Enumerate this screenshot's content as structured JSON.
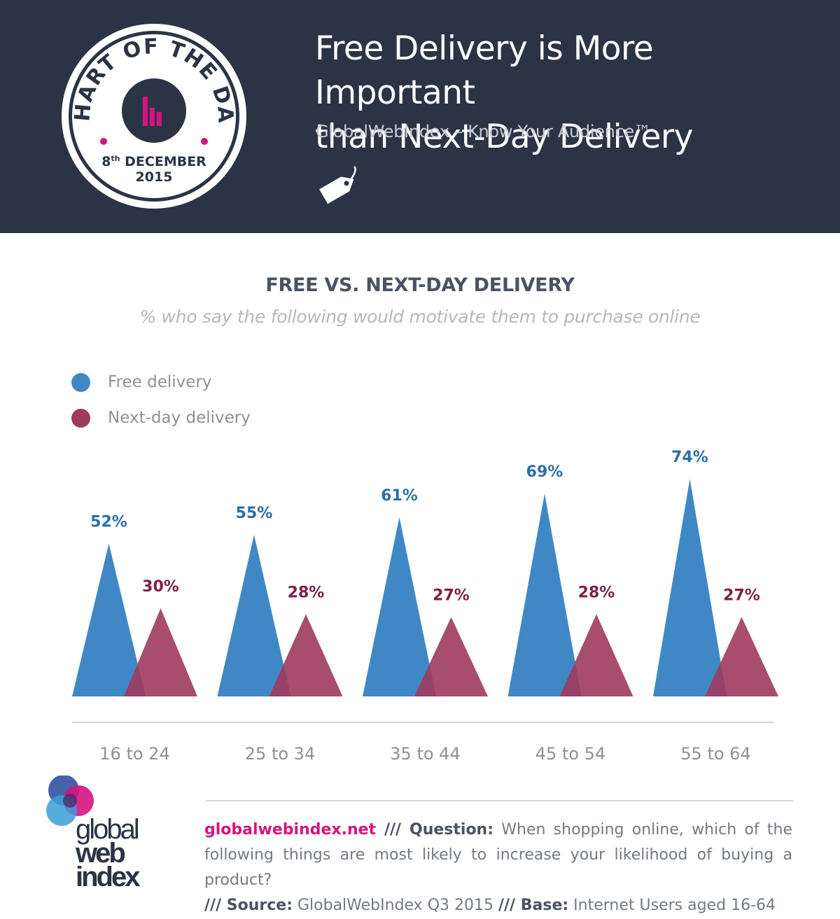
{
  "header": {
    "badge": {
      "ring_text": "CHART OF THE DAY",
      "day": "8",
      "day_suffix": "th",
      "month": "DECEMBER",
      "year": "2015"
    },
    "title_line1": "Free Delivery is More Important",
    "title_line2": "than Next-Day Delivery",
    "subtitle": "GlobalWebIndex – Know Your Audience™"
  },
  "colors": {
    "header_bg": "#2a3445",
    "accent_pink": "#d4147f",
    "free": "#3f88c5",
    "nextday": "#9e3a5d",
    "free_label": "#2b6fa6",
    "nextday_label": "#7e1f47"
  },
  "chart_data": {
    "type": "bar",
    "title": "FREE VS. NEXT-DAY DELIVERY",
    "subtitle": "% who say the following would motivate them to purchase online",
    "categories": [
      "16 to 24",
      "25 to 34",
      "35 to 44",
      "45 to 54",
      "55 to 64"
    ],
    "series": [
      {
        "name": "Free delivery",
        "values": [
          52,
          55,
          61,
          69,
          74
        ],
        "labels": [
          "52%",
          "55%",
          "61%",
          "69%",
          "74%"
        ]
      },
      {
        "name": "Next-day delivery",
        "values": [
          30,
          28,
          27,
          28,
          27
        ],
        "labels": [
          "30%",
          "28%",
          "27%",
          "28%",
          "27%"
        ]
      }
    ],
    "unit": "%",
    "ylim": [
      0,
      100
    ],
    "legend_position": "top-left",
    "grid": false
  },
  "footer": {
    "site": "globalwebindex.net",
    "sep1": " /// ",
    "question_label": "Question:",
    "question_text": " When shopping online, which of the following things are most likely to increase your likelihood of buying a product?",
    "sep2": "/// ",
    "source_label": "Source:",
    "source_text": " GlobalWebIndex Q3 2015 ",
    "sep3": "/// ",
    "base_label": "Base:",
    "base_text": " Internet Users aged 16-64"
  },
  "logo": {
    "line1": "global",
    "line2": "web",
    "line3": "index"
  }
}
